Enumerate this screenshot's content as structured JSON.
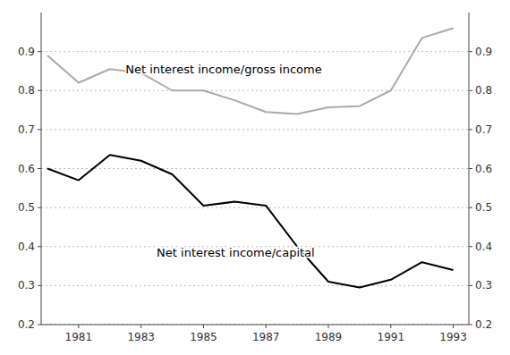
{
  "chart_data": {
    "type": "line",
    "x": [
      1980,
      1981,
      1982,
      1983,
      1984,
      1985,
      1986,
      1987,
      1988,
      1989,
      1990,
      1991,
      1992,
      1993
    ],
    "series": [
      {
        "color": "#aaaaaa",
        "values": [
          0.89,
          0.82,
          0.855,
          0.845,
          0.8,
          0.8,
          0.775,
          0.745,
          0.74,
          0.757,
          0.76,
          0.8,
          0.935,
          0.96
        ]
      },
      {
        "color": "#000000",
        "values": [
          0.6,
          0.57,
          0.635,
          0.62,
          0.585,
          0.505,
          0.515,
          0.505,
          0.4,
          0.31,
          0.295,
          0.315,
          0.36,
          0.34
        ]
      }
    ],
    "xlim": [
      1979.8,
      1993.5
    ],
    "xticks": [
      1981,
      1983,
      1985,
      1987,
      1989,
      1991,
      1993
    ],
    "ylim": [
      0.2,
      1.0
    ],
    "yticks": [
      0.2,
      0.3,
      0.4,
      0.5,
      0.6,
      0.7,
      0.8,
      0.9
    ],
    "y2lim": [
      0.2,
      1.0
    ],
    "y2ticks": [
      0.2,
      0.3,
      0.4,
      0.5,
      0.6,
      0.7,
      0.8,
      0.9
    ],
    "grid": true,
    "annotations": [
      {
        "text": "Net interest income/gross income",
        "x": 1982.5,
        "y": 0.855
      },
      {
        "text": "Net interest income/capital",
        "x": 1983.5,
        "y": 0.385
      }
    ]
  }
}
